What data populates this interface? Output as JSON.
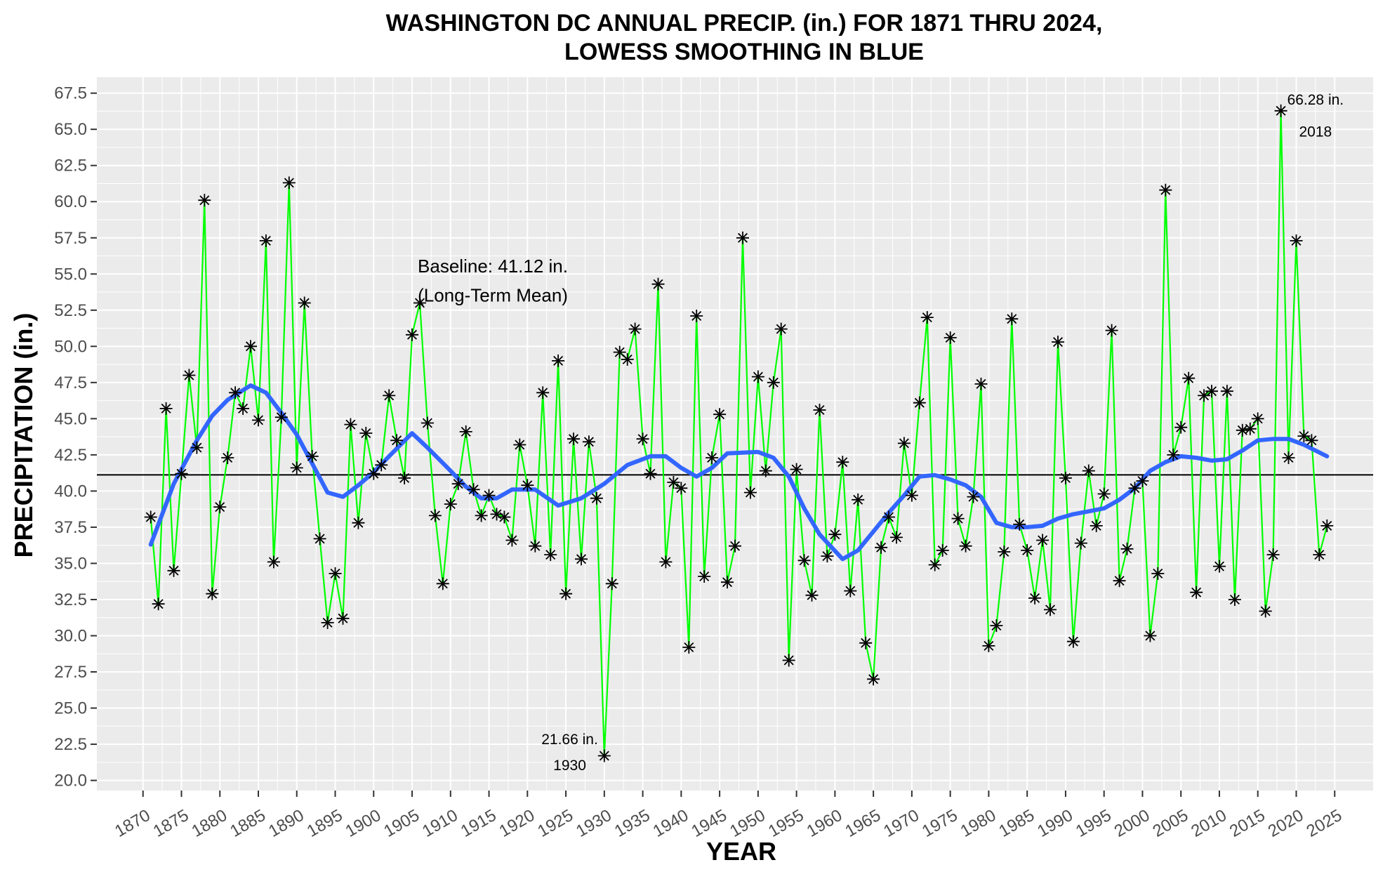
{
  "chart_data": {
    "type": "line",
    "title_line1": "WASHINGTON DC ANNUAL PRECIP. (in.) FOR 1871 THRU 2024,",
    "title_line2": "LOWESS SMOOTHING IN BLUE",
    "xlabel": "YEAR",
    "ylabel": "PRECIPITATION (in.)",
    "xlim": [
      1864,
      2030
    ],
    "ylim": [
      19.3,
      68.6
    ],
    "x_ticks": [
      1870,
      1875,
      1880,
      1885,
      1890,
      1895,
      1900,
      1905,
      1910,
      1915,
      1920,
      1925,
      1930,
      1935,
      1940,
      1945,
      1950,
      1955,
      1960,
      1965,
      1970,
      1975,
      1980,
      1985,
      1990,
      1995,
      2000,
      2005,
      2010,
      2015,
      2020,
      2025
    ],
    "y_ticks": [
      20.0,
      22.5,
      25.0,
      27.5,
      30.0,
      32.5,
      35.0,
      37.5,
      40.0,
      42.5,
      45.0,
      47.5,
      50.0,
      52.5,
      55.0,
      57.5,
      60.0,
      62.5,
      65.0,
      67.5
    ],
    "grid": true,
    "colors": {
      "panel": "#ebebeb",
      "grid": "#ffffff",
      "series_line": "#00ff00",
      "smooth": "#3366ff",
      "baseline": "#000000",
      "marker": "#000000",
      "annot_max": "#6b8e23",
      "annot_min": "#7a5230"
    },
    "series": [
      {
        "name": "Annual precipitation",
        "x_start": 1871,
        "values": [
          38.2,
          32.2,
          45.7,
          34.5,
          41.2,
          48.0,
          43.0,
          60.1,
          32.9,
          38.9,
          42.3,
          46.8,
          45.7,
          50.0,
          44.9,
          57.3,
          35.1,
          45.1,
          61.3,
          41.6,
          53.0,
          42.4,
          36.7,
          30.9,
          34.3,
          31.2,
          44.6,
          37.8,
          44.0,
          41.2,
          41.8,
          46.6,
          43.5,
          40.9,
          50.8,
          53.0,
          44.7,
          38.3,
          33.6,
          39.1,
          40.5,
          44.1,
          40.1,
          38.3,
          39.7,
          38.4,
          38.2,
          36.6,
          43.2,
          40.4,
          36.2,
          46.8,
          35.6,
          49.0,
          32.9,
          43.6,
          35.3,
          43.4,
          39.5,
          21.7,
          33.6,
          49.6,
          49.1,
          51.2,
          43.6,
          41.2,
          54.3,
          35.1,
          40.6,
          40.2,
          29.2,
          52.1,
          34.1,
          42.3,
          45.3,
          33.7,
          36.2,
          57.5,
          39.9,
          47.9,
          41.4,
          47.5,
          51.2,
          28.3,
          41.5,
          35.2,
          32.8,
          45.6,
          35.5,
          37.0,
          42.0,
          33.1,
          39.4,
          29.5,
          27.0,
          36.1,
          38.2,
          36.8,
          43.3,
          39.7,
          46.1,
          52.0,
          34.9,
          35.9,
          50.6,
          38.1,
          36.2,
          39.6,
          47.4,
          29.3,
          30.7,
          35.8,
          51.9,
          37.7,
          35.9,
          32.6,
          36.6,
          31.8,
          50.3,
          40.9,
          29.6,
          36.4,
          41.4,
          37.6,
          39.8,
          51.1,
          33.8,
          36.0,
          40.2,
          40.7,
          30.0,
          34.3,
          60.8,
          42.5,
          44.4,
          47.8,
          33.0,
          46.6,
          46.9,
          34.8,
          46.9,
          32.5,
          44.2,
          44.3,
          45.0,
          31.7,
          35.6,
          66.28,
          42.3,
          57.3,
          43.8,
          43.5,
          35.6,
          37.6
        ]
      }
    ],
    "smooth": {
      "name": "LOWESS",
      "x": [
        1871,
        1874,
        1877,
        1879,
        1881,
        1884,
        1886,
        1888,
        1890,
        1892,
        1894,
        1896,
        1898,
        1900,
        1902,
        1905,
        1907,
        1910,
        1912,
        1914,
        1916,
        1918,
        1921,
        1924,
        1927,
        1930,
        1933,
        1936,
        1938,
        1940,
        1942,
        1944,
        1946,
        1950,
        1952,
        1954,
        1956,
        1958,
        1961,
        1963,
        1965,
        1967,
        1969,
        1971,
        1973,
        1975,
        1977,
        1979,
        1981,
        1983,
        1985,
        1987,
        1989,
        1991,
        1993,
        1995,
        1997,
        1999,
        2001,
        2003,
        2005,
        2007,
        2009,
        2011,
        2013,
        2015,
        2017,
        2019,
        2021,
        2024
      ],
      "y": [
        36.3,
        40.5,
        43.5,
        45.2,
        46.3,
        47.3,
        46.8,
        45.4,
        43.9,
        41.9,
        39.9,
        39.6,
        40.4,
        41.3,
        42.4,
        44.0,
        43.0,
        41.4,
        40.3,
        39.5,
        39.5,
        40.1,
        40.1,
        39.0,
        39.5,
        40.5,
        41.8,
        42.4,
        42.4,
        41.6,
        41.0,
        41.6,
        42.6,
        42.7,
        42.3,
        41.0,
        38.8,
        37.0,
        35.3,
        35.9,
        37.2,
        38.5,
        39.7,
        41.0,
        41.1,
        40.8,
        40.4,
        39.6,
        37.8,
        37.5,
        37.5,
        37.6,
        38.1,
        38.4,
        38.6,
        38.8,
        39.4,
        40.2,
        41.4,
        42.0,
        42.4,
        42.3,
        42.1,
        42.2,
        42.8,
        43.5,
        43.6,
        43.6,
        43.2,
        42.4
      ]
    },
    "baseline": {
      "value": 41.12,
      "label_line1": "Baseline: 41.12 in.",
      "label_line2": "(Long-Term Mean)",
      "label_x": 1915.5,
      "label_y1": 55.1,
      "label_y2": 53.1
    },
    "annotations": [
      {
        "kind": "max",
        "x": 2018,
        "y": 66.28,
        "line1": "66.28 in.",
        "line2": "2018",
        "label_x": 2022.5,
        "label_y1": 66.7,
        "label_y2": 64.5
      },
      {
        "kind": "min",
        "x": 1930,
        "y": 21.66,
        "line1": "21.66 in.",
        "line2": "1930",
        "label_x": 1925.5,
        "label_y1": 22.5,
        "label_y2": 20.7
      }
    ]
  }
}
